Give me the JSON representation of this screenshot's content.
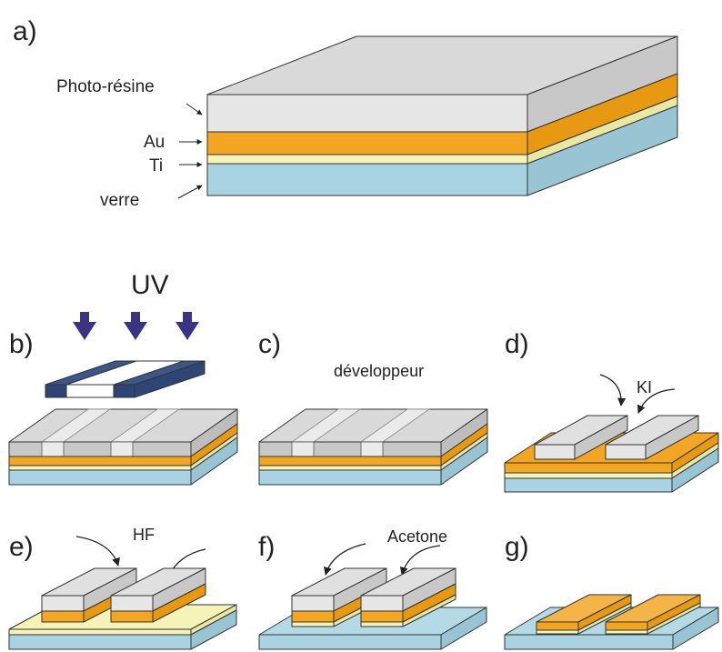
{
  "panels": {
    "a": "a)",
    "b": "b)",
    "c": "c)",
    "d": "d)",
    "e": "e)",
    "f": "f)",
    "g": "g)"
  },
  "materials": {
    "photoresist": "Photo-résine",
    "gold": "Au",
    "titanium": "Ti",
    "glass": "verre"
  },
  "agents": {
    "uv": "UV",
    "developer": "développeur",
    "ki": "KI",
    "hf": "HF",
    "acetone": "Acetone"
  },
  "colors": {
    "resist_top": "#d9d9d9",
    "resist_front": "#e6e6e6",
    "resist_side": "#c8c8c8",
    "resist_exposed": "#ebebeb",
    "gold_front": "#f2a623",
    "gold_side": "#e79912",
    "ti_front": "#f6f3b8",
    "ti_side": "#eae7a2",
    "glass_front": "#a9d3e2",
    "glass_side": "#98c4d4",
    "mask_dark": "#3d5688",
    "arrow_uv": "#3a3582"
  }
}
